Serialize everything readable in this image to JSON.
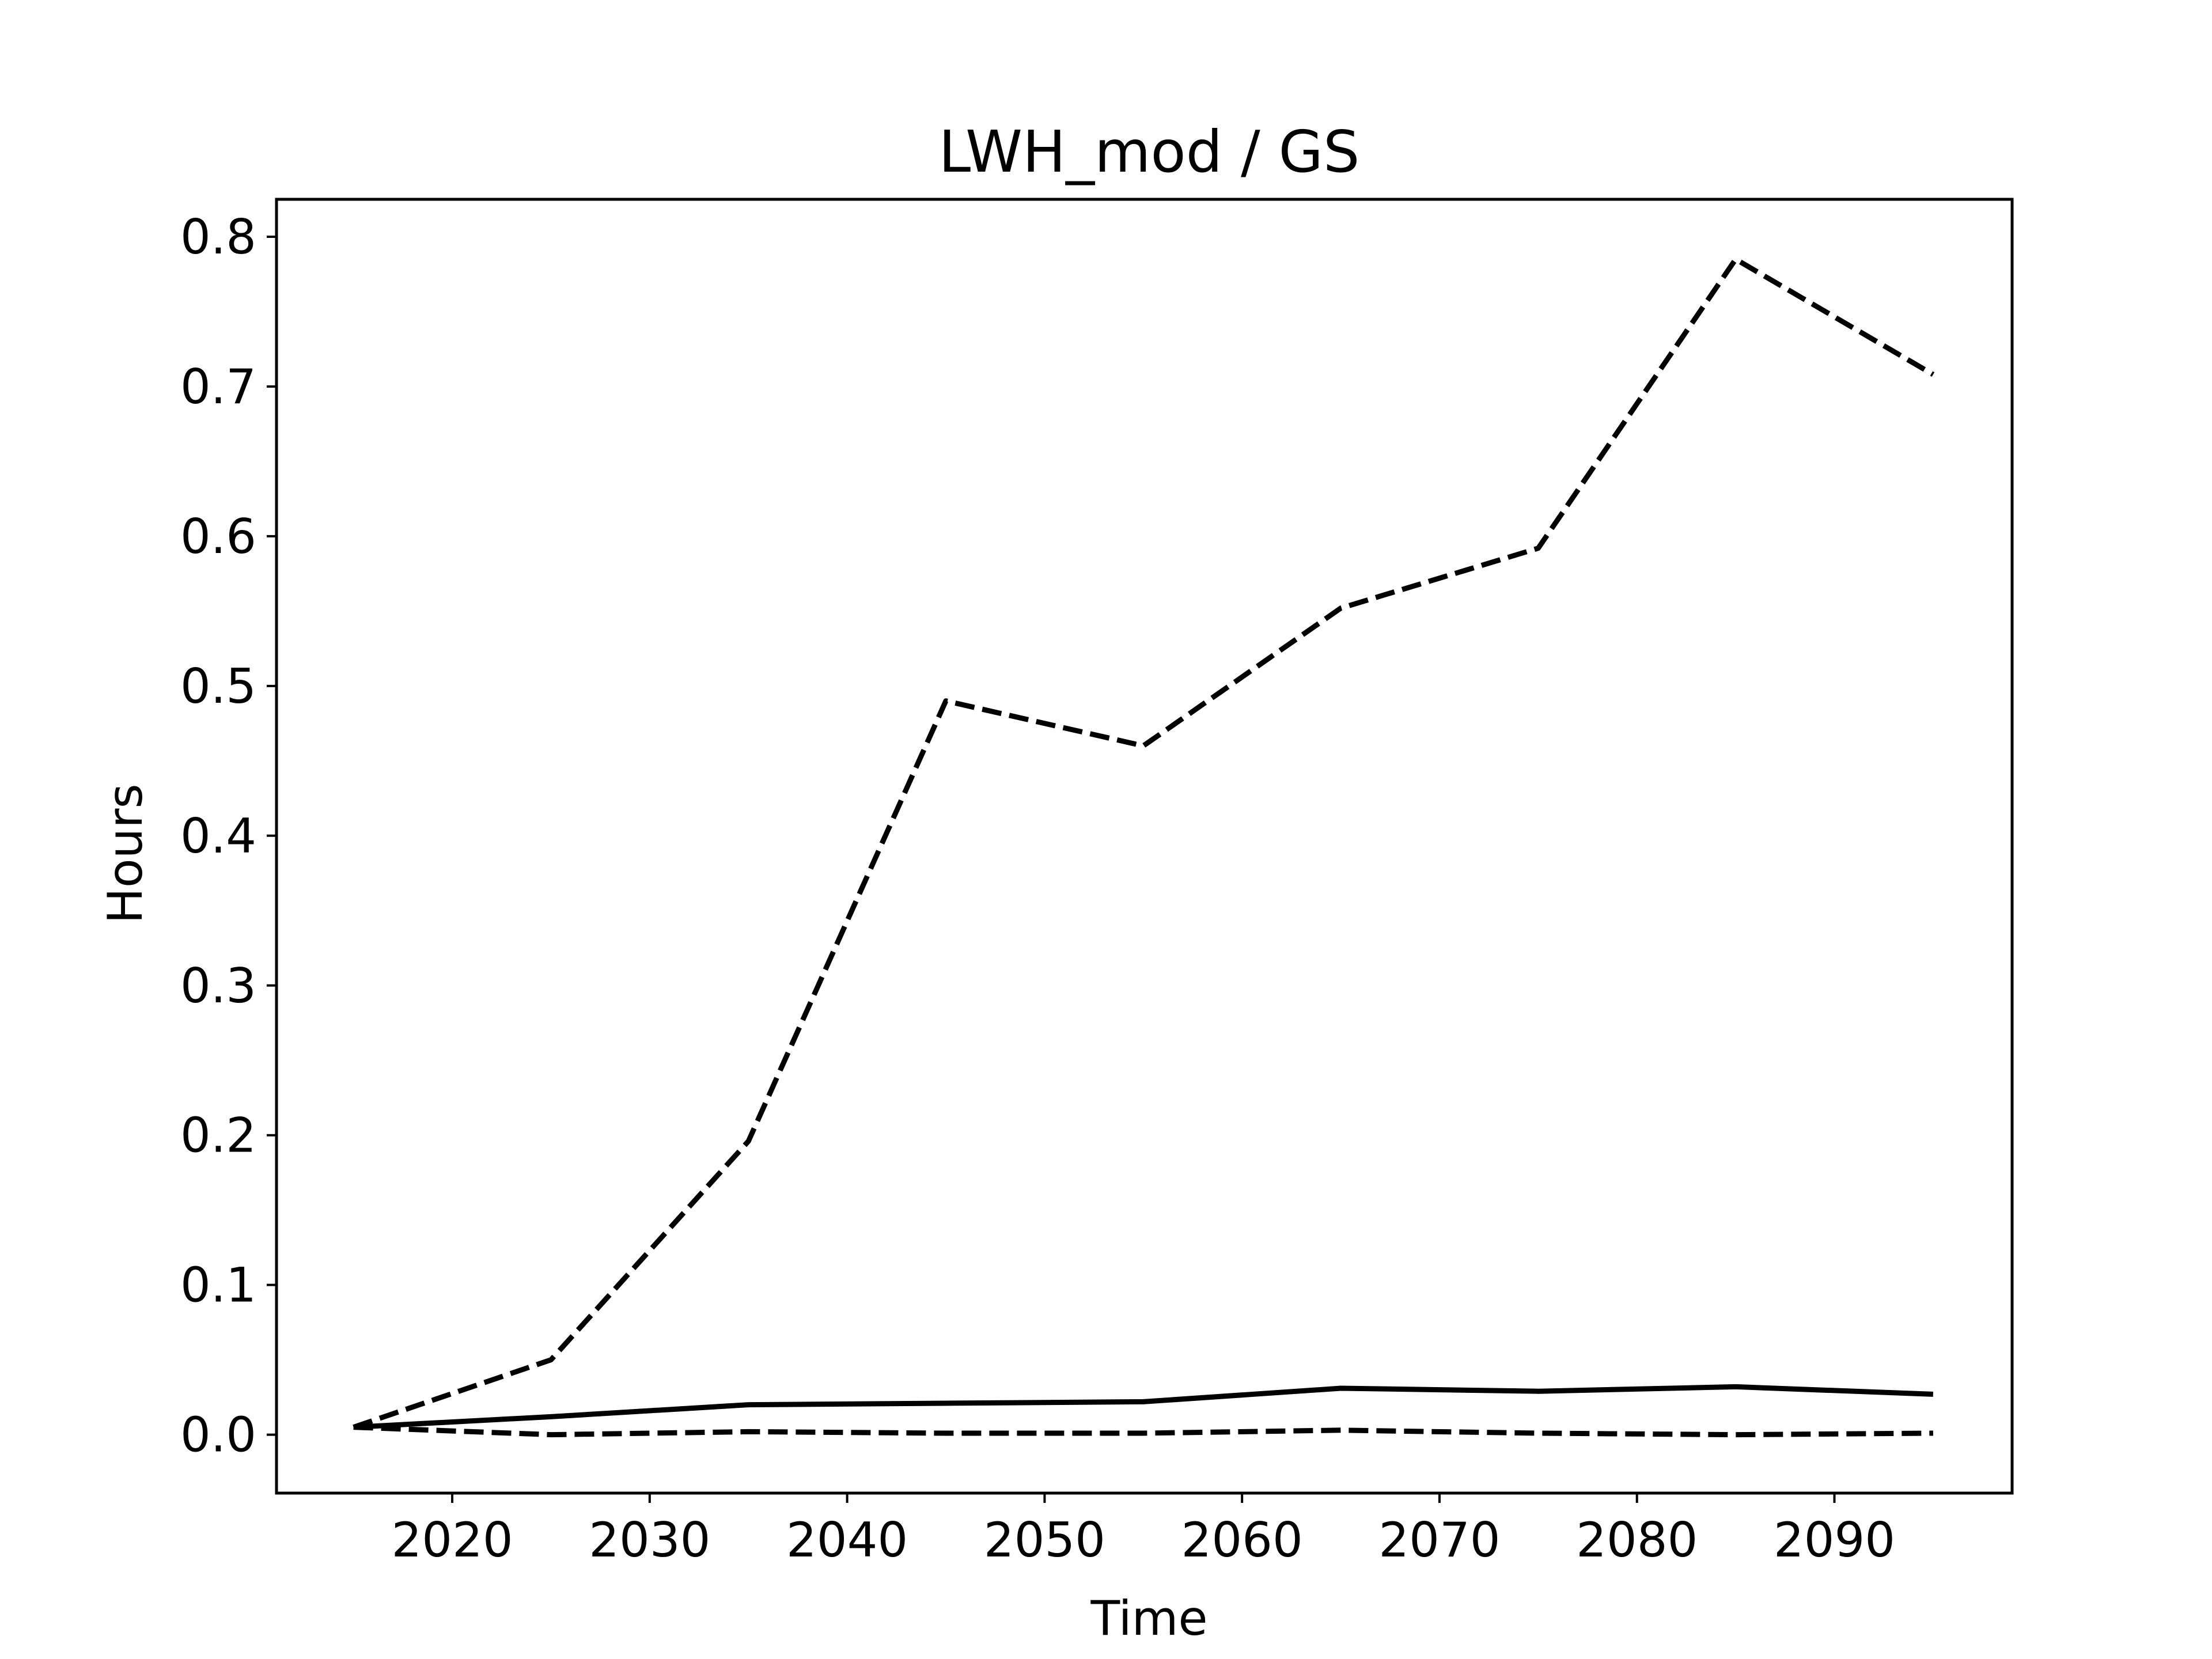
{
  "chart_data": {
    "type": "line",
    "title": "LWH_mod / GS",
    "xlabel": "Time",
    "ylabel": "Hours",
    "xlim": [
      2011.1,
      2099
    ],
    "ylim": [
      -0.039,
      0.825
    ],
    "xticks": [
      2020,
      2030,
      2040,
      2050,
      2060,
      2070,
      2080,
      2090
    ],
    "yticks": [
      0.0,
      0.1,
      0.2,
      0.3,
      0.4,
      0.5,
      0.6,
      0.7,
      0.8
    ],
    "ytick_labels": [
      "0.0",
      "0.1",
      "0.2",
      "0.3",
      "0.4",
      "0.5",
      "0.6",
      "0.7",
      "0.8"
    ],
    "grid": false,
    "x": [
      2015,
      2025,
      2035,
      2045,
      2055,
      2065,
      2075,
      2085,
      2095
    ],
    "series": [
      {
        "style": "dashed",
        "color": "#000000",
        "values": [
          0.005,
          0.05,
          0.196,
          0.49,
          0.46,
          0.552,
          0.592,
          0.785,
          0.708
        ]
      },
      {
        "style": "solid",
        "color": "#000000",
        "values": [
          0.005,
          0.012,
          0.02,
          0.021,
          0.022,
          0.031,
          0.029,
          0.032,
          0.027
        ]
      },
      {
        "style": "dashed",
        "color": "#000000",
        "values": [
          0.005,
          0.0,
          0.002,
          0.001,
          0.001,
          0.003,
          0.001,
          0.0,
          0.001
        ]
      }
    ]
  }
}
